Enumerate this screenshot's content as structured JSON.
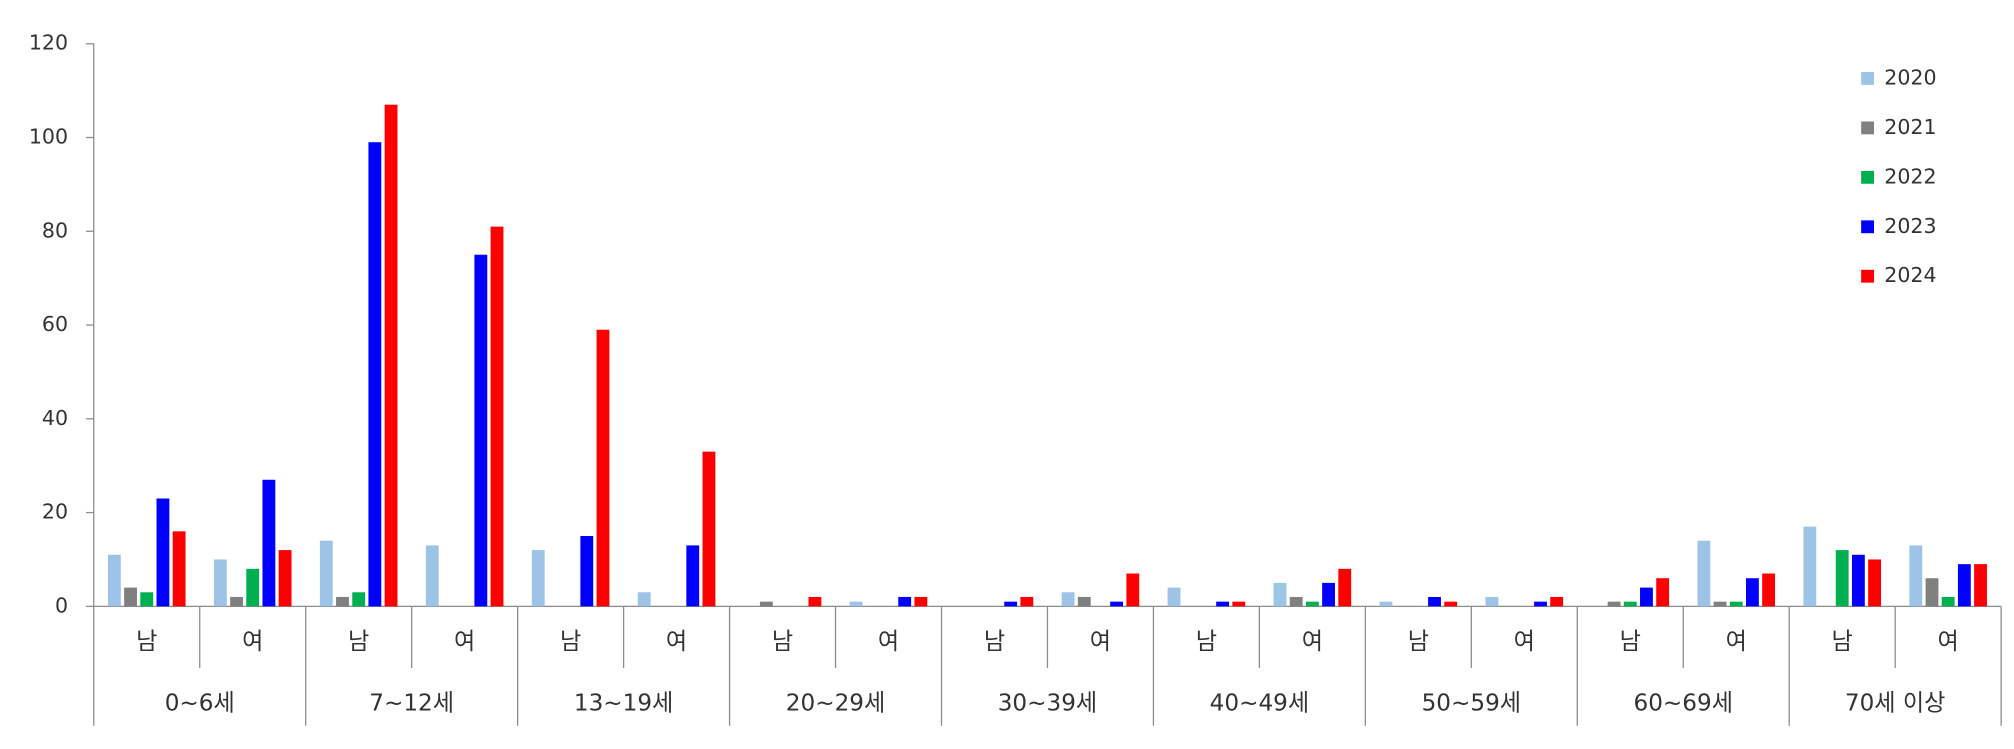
{
  "chart_data": {
    "type": "bar",
    "categories": [
      "남",
      "여",
      "남",
      "여",
      "남",
      "여",
      "남",
      "여",
      "남",
      "여",
      "남",
      "여",
      "남",
      "여",
      "남",
      "여",
      "남",
      "여"
    ],
    "groups": [
      "0~6세",
      "7~12세",
      "13~19세",
      "20~29세",
      "30~39세",
      "40~49세",
      "50~59세",
      "60~69세",
      "70세 이상"
    ],
    "series": [
      {
        "name": "2020",
        "color": "#9dc3e6",
        "values": [
          11,
          10,
          14,
          13,
          12,
          3,
          0,
          1,
          0,
          3,
          4,
          5,
          1,
          2,
          0,
          14,
          17,
          13
        ]
      },
      {
        "name": "2021",
        "color": "#808080",
        "values": [
          4,
          2,
          2,
          0,
          0,
          0,
          1,
          0,
          0,
          2,
          0,
          2,
          0,
          0,
          1,
          1,
          0,
          6
        ]
      },
      {
        "name": "2022",
        "color": "#00b050",
        "values": [
          3,
          8,
          3,
          0,
          0,
          0,
          0,
          0,
          0,
          0,
          0,
          1,
          0,
          0,
          1,
          1,
          12,
          2
        ]
      },
      {
        "name": "2023",
        "color": "#0000ff",
        "values": [
          23,
          27,
          99,
          75,
          15,
          13,
          0,
          2,
          1,
          1,
          1,
          5,
          2,
          1,
          4,
          6,
          11,
          9
        ]
      },
      {
        "name": "2024",
        "color": "#ff0000",
        "values": [
          16,
          12,
          107,
          81,
          59,
          33,
          2,
          2,
          2,
          7,
          1,
          8,
          1,
          2,
          6,
          7,
          10,
          9
        ]
      }
    ],
    "ylim": [
      0,
      120
    ],
    "yticks": [
      0,
      20,
      40,
      60,
      80,
      100,
      120
    ],
    "grid": false,
    "legend": "top-right"
  }
}
